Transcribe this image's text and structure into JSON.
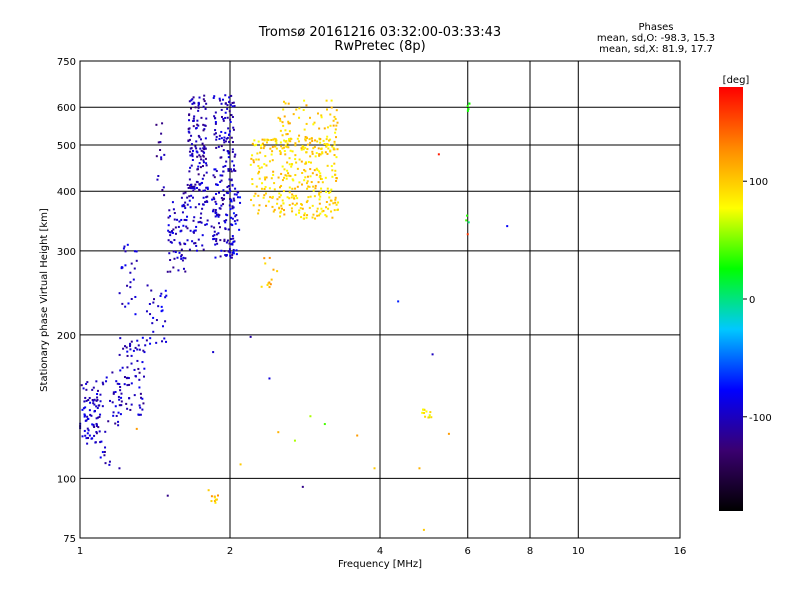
{
  "title": {
    "line1": "Tromsø 20161216 03:32:00-03:33:43",
    "line2": "RwPretec (8p)"
  },
  "stats": {
    "heading": "Phases",
    "line_o": "mean, sd,O: -98.3, 15.3",
    "line_x": "mean, sd,X:  81.9, 17.7"
  },
  "chart_data": {
    "type": "scatter",
    "xlabel": "Frequency [MHz]",
    "ylabel": "Stationary phase Virtual Height [km]",
    "x_scale": "log",
    "y_scale": "log",
    "xlim": [
      1,
      16
    ],
    "ylim": [
      75,
      750
    ],
    "x_ticks": [
      {
        "value": 1,
        "label": "1"
      },
      {
        "value": 2,
        "label": "2"
      },
      {
        "value": 4,
        "label": "4"
      },
      {
        "value": 6,
        "label": "6"
      },
      {
        "value": 8,
        "label": "8"
      },
      {
        "value": 10,
        "label": "10"
      },
      {
        "value": 16,
        "label": "16"
      }
    ],
    "y_ticks": [
      {
        "value": 75,
        "label": "75"
      },
      {
        "value": 100,
        "label": "100"
      },
      {
        "value": 200,
        "label": "200"
      },
      {
        "value": 300,
        "label": "300"
      },
      {
        "value": 400,
        "label": "400"
      },
      {
        "value": 500,
        "label": "500"
      },
      {
        "value": 600,
        "label": "600"
      },
      {
        "value": 750,
        "label": "750"
      }
    ],
    "grid": true,
    "colorbar": {
      "label": "[deg]",
      "range": [
        -180,
        180
      ],
      "ticks": [
        {
          "value": 100,
          "label": "100"
        },
        {
          "value": 0,
          "label": "0"
        },
        {
          "value": -100,
          "label": "-100"
        }
      ],
      "colors": [
        "#000000",
        "#3a0070",
        "#0000ff",
        "#00c8ff",
        "#00ff00",
        "#ffff00",
        "#ff8800",
        "#ff0000"
      ]
    },
    "clusters": [
      {
        "f": [
          1.0,
          1.1
        ],
        "h": [
          118,
          160
        ],
        "n": 80,
        "phase": -100
      },
      {
        "f": [
          1.1,
          1.2
        ],
        "h": [
          105,
          175
        ],
        "n": 35,
        "phase": -100
      },
      {
        "f": [
          1.2,
          1.35
        ],
        "h": [
          135,
          200
        ],
        "n": 70,
        "phase": -100
      },
      {
        "f": [
          1.2,
          1.3
        ],
        "h": [
          220,
          310
        ],
        "n": 25,
        "phase": -100
      },
      {
        "f": [
          1.35,
          1.5
        ],
        "h": [
          190,
          260
        ],
        "n": 30,
        "phase": -95
      },
      {
        "f": [
          1.42,
          1.48
        ],
        "h": [
          380,
          580
        ],
        "n": 15,
        "phase": -105
      },
      {
        "f": [
          1.5,
          1.65
        ],
        "h": [
          270,
          380
        ],
        "n": 60,
        "phase": -100
      },
      {
        "f": [
          1.65,
          1.8
        ],
        "h": [
          400,
          640
        ],
        "n": 120,
        "phase": -105
      },
      {
        "f": [
          1.6,
          1.85
        ],
        "h": [
          300,
          420
        ],
        "n": 70,
        "phase": -100
      },
      {
        "f": [
          1.85,
          2.05
        ],
        "h": [
          290,
          640
        ],
        "n": 200,
        "phase": -100
      },
      {
        "f": [
          2.0,
          2.1
        ],
        "h": [
          290,
          400
        ],
        "n": 30,
        "phase": -90
      },
      {
        "f": [
          2.2,
          3.3
        ],
        "h": [
          350,
          520
        ],
        "n": 340,
        "phase": 95
      },
      {
        "f": [
          2.5,
          3.3
        ],
        "h": [
          480,
          620
        ],
        "n": 80,
        "phase": 95
      },
      {
        "f": [
          2.3,
          2.5
        ],
        "h": [
          245,
          290
        ],
        "n": 12,
        "phase": 110
      },
      {
        "f": [
          1.8,
          1.9
        ],
        "h": [
          88,
          95
        ],
        "n": 10,
        "phase": 105
      },
      {
        "f": [
          4.85,
          5.1
        ],
        "h": [
          134,
          140
        ],
        "n": 12,
        "phase": 80
      },
      {
        "f": [
          5.95,
          6.05
        ],
        "h": [
          570,
          620
        ],
        "n": 5,
        "phase": 40
      },
      {
        "f": [
          5.95,
          6.05
        ],
        "h": [
          340,
          365
        ],
        "n": 3,
        "phase": 20
      }
    ],
    "points": [
      {
        "f": 4.35,
        "h": 235,
        "phase": -70
      },
      {
        "f": 5.1,
        "h": 182,
        "phase": -100
      },
      {
        "f": 5.25,
        "h": 478,
        "phase": 170
      },
      {
        "f": 7.2,
        "h": 338,
        "phase": -80
      },
      {
        "f": 6.0,
        "h": 325,
        "phase": 160
      },
      {
        "f": 1.2,
        "h": 105,
        "phase": -110
      },
      {
        "f": 1.5,
        "h": 92,
        "phase": -120
      },
      {
        "f": 2.8,
        "h": 96,
        "phase": -120
      },
      {
        "f": 2.2,
        "h": 198,
        "phase": -110
      },
      {
        "f": 2.4,
        "h": 162,
        "phase": -90
      },
      {
        "f": 2.9,
        "h": 135,
        "phase": 60
      },
      {
        "f": 3.1,
        "h": 130,
        "phase": 40
      },
      {
        "f": 3.6,
        "h": 123,
        "phase": 120
      },
      {
        "f": 3.9,
        "h": 105,
        "phase": 100
      },
      {
        "f": 4.8,
        "h": 105,
        "phase": 110
      },
      {
        "f": 4.9,
        "h": 78,
        "phase": 100
      },
      {
        "f": 5.5,
        "h": 124,
        "phase": 120
      },
      {
        "f": 1.3,
        "h": 127,
        "phase": 120
      },
      {
        "f": 2.1,
        "h": 107,
        "phase": 100
      },
      {
        "f": 2.5,
        "h": 125,
        "phase": 110
      },
      {
        "f": 2.7,
        "h": 120,
        "phase": 60
      },
      {
        "f": 1.85,
        "h": 184,
        "phase": -95
      }
    ]
  }
}
